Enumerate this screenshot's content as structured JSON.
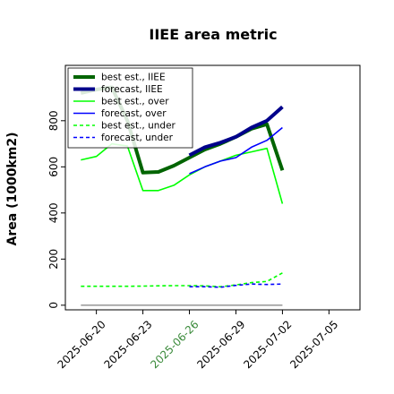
{
  "chart_data": {
    "type": "line",
    "title": "IIEE area metric",
    "xlabel": "",
    "ylabel": "Area (1000km2)",
    "xlim": [
      "2025-06-18",
      "2025-07-07"
    ],
    "ylim": [
      -20,
      1040
    ],
    "x_ticks": [
      "2025-06-20",
      "2025-06-23",
      "2025-06-26",
      "2025-06-29",
      "2025-07-02",
      "2025-07-05"
    ],
    "y_ticks": [
      0,
      200,
      400,
      600,
      800
    ],
    "highlight_tick": "2025-06-26",
    "grid": false,
    "legend_position": "top-left",
    "baseline": {
      "x": [
        "2025-06-19",
        "2025-07-02"
      ],
      "value": 0,
      "color": "#808080"
    },
    "series": [
      {
        "name": "best est., IIEE",
        "color": "#006400",
        "style": "solid",
        "width": 4,
        "x": [
          "2025-06-19",
          "2025-06-20",
          "2025-06-21",
          "2025-06-22",
          "2025-06-23",
          "2025-06-24",
          "2025-06-25",
          "2025-06-26",
          "2025-06-27",
          "2025-06-28",
          "2025-06-29",
          "2025-06-30",
          "2025-07-01",
          "2025-07-02"
        ],
        "values": [
          920,
          935,
          945,
          800,
          575,
          578,
          605,
          640,
          675,
          700,
          730,
          765,
          785,
          585
        ]
      },
      {
        "name": "forecast, IIEE",
        "color": "#00008b",
        "style": "solid",
        "width": 4,
        "x": [
          "2025-06-26",
          "2025-06-27",
          "2025-06-28",
          "2025-06-29",
          "2025-06-30",
          "2025-07-01",
          "2025-07-02"
        ],
        "values": [
          650,
          685,
          705,
          730,
          770,
          800,
          860
        ]
      },
      {
        "name": "best est., over",
        "color": "#00ff00",
        "style": "solid",
        "width": 1.6,
        "x": [
          "2025-06-19",
          "2025-06-20",
          "2025-06-21",
          "2025-06-22",
          "2025-06-23",
          "2025-06-24",
          "2025-06-25",
          "2025-06-26",
          "2025-06-27",
          "2025-06-28",
          "2025-06-29",
          "2025-06-30",
          "2025-07-01",
          "2025-07-02"
        ],
        "values": [
          630,
          645,
          700,
          690,
          497,
          497,
          520,
          565,
          600,
          625,
          650,
          665,
          680,
          440
        ]
      },
      {
        "name": "forecast, over",
        "color": "#0000ff",
        "style": "solid",
        "width": 1.6,
        "x": [
          "2025-06-26",
          "2025-06-27",
          "2025-06-28",
          "2025-06-29",
          "2025-06-30",
          "2025-07-01",
          "2025-07-02"
        ],
        "values": [
          570,
          600,
          625,
          640,
          685,
          715,
          770
        ]
      },
      {
        "name": "best est., under",
        "color": "#00ff00",
        "style": "dashed",
        "width": 1.6,
        "x": [
          "2025-06-19",
          "2025-06-20",
          "2025-06-21",
          "2025-06-22",
          "2025-06-23",
          "2025-06-24",
          "2025-06-25",
          "2025-06-26",
          "2025-06-27",
          "2025-06-28",
          "2025-06-29",
          "2025-06-30",
          "2025-07-01",
          "2025-07-02"
        ],
        "values": [
          82,
          82,
          82,
          82,
          83,
          84,
          85,
          85,
          84,
          80,
          88,
          98,
          103,
          140
        ]
      },
      {
        "name": "forecast, under",
        "color": "#0000ff",
        "style": "dashed",
        "width": 1.6,
        "x": [
          "2025-06-26",
          "2025-06-27",
          "2025-06-28",
          "2025-06-29",
          "2025-06-30",
          "2025-07-01",
          "2025-07-02"
        ],
        "values": [
          80,
          80,
          78,
          86,
          92,
          90,
          92
        ]
      }
    ]
  }
}
